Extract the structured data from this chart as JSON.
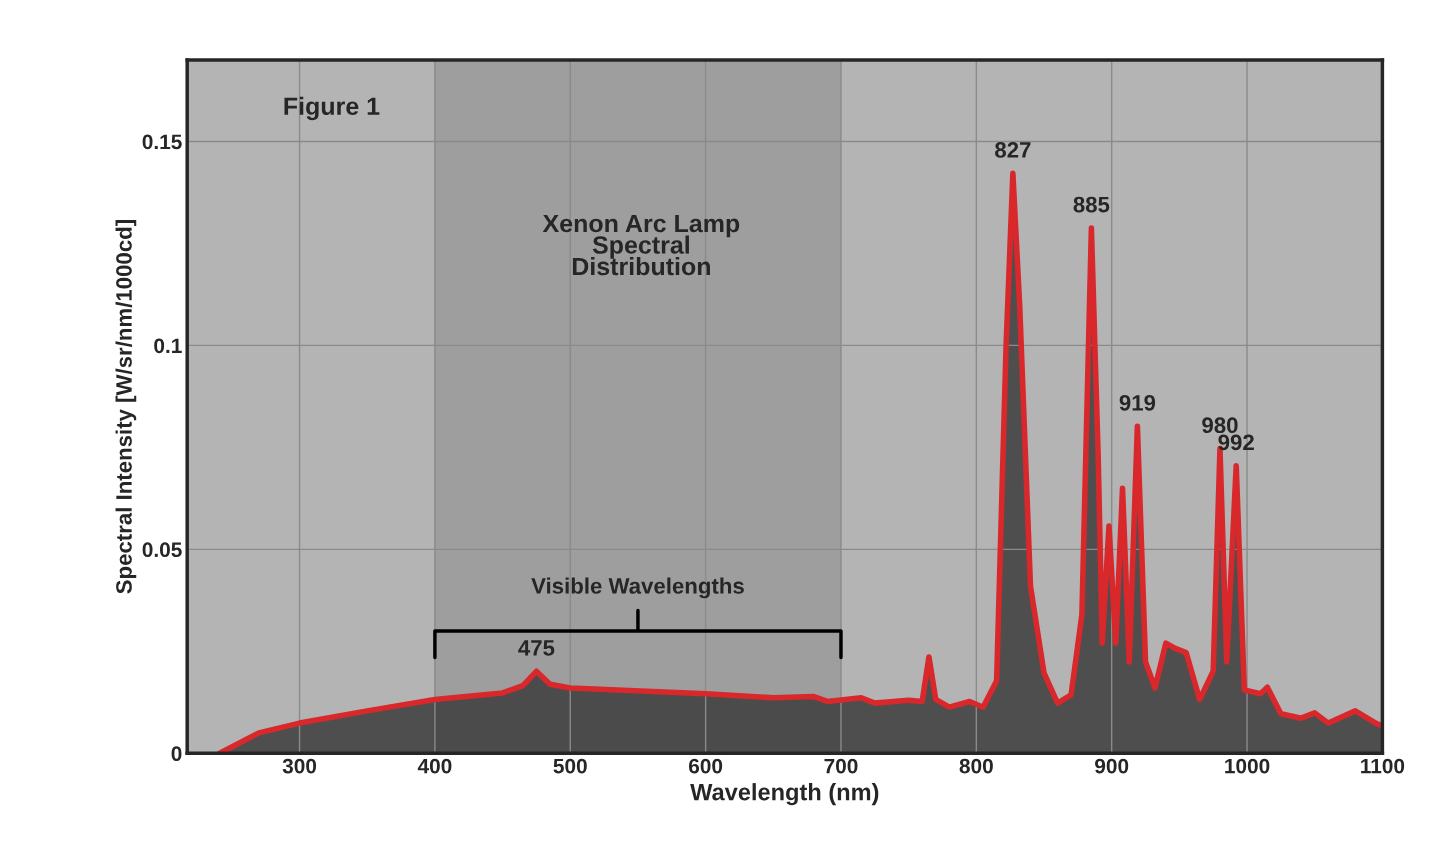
{
  "chart_data": {
    "type": "area",
    "title": "Xenon Arc Lamp\nSpectral\nDistribution",
    "xlabel": "Wavelength (nm)",
    "ylabel": "Spectral Intensity [W/sr/nm/1000cd]",
    "x": [
      241,
      270,
      300,
      350,
      400,
      450,
      465,
      475,
      485,
      500,
      600,
      650,
      680,
      690,
      715,
      725,
      750,
      760,
      765,
      770,
      780,
      795,
      805,
      815,
      822,
      827,
      832,
      840,
      850,
      860,
      870,
      878,
      885,
      890,
      893,
      898,
      903,
      908,
      913,
      919,
      925,
      932,
      940,
      947,
      955,
      965,
      975,
      980,
      985,
      992,
      998,
      1010,
      1015,
      1025,
      1040,
      1050,
      1060,
      1080,
      1095,
      1100
    ],
    "series": [
      {
        "color": "#d8282c",
        "values": [
          0,
          0.005,
          0.0074,
          0.0104,
          0.0132,
          0.0148,
          0.0166,
          0.0201,
          0.0169,
          0.016,
          0.0146,
          0.0136,
          0.0139,
          0.0127,
          0.0136,
          0.0123,
          0.013,
          0.0127,
          0.0236,
          0.0132,
          0.0113,
          0.0127,
          0.0113,
          0.0178,
          0.1,
          0.1422,
          0.11,
          0.041,
          0.0197,
          0.0123,
          0.0143,
          0.034,
          0.1288,
          0.073,
          0.027,
          0.0557,
          0.027,
          0.065,
          0.0224,
          0.0802,
          0.0224,
          0.016,
          0.027,
          0.0257,
          0.0247,
          0.0132,
          0.0201,
          0.0747,
          0.0224,
          0.0705,
          0.0155,
          0.0146,
          0.0162,
          0.0097,
          0.0086,
          0.0099,
          0.0074,
          0.0104,
          0.0074,
          0.0067
        ]
      }
    ],
    "xlim": [
      217,
      1100
    ],
    "ylim": [
      0,
      0.17
    ],
    "xticks": [
      300,
      400,
      500,
      600,
      700,
      800,
      900,
      1000,
      1100
    ],
    "yticks": [
      0,
      0.05,
      0.1,
      0.15
    ],
    "grid": true,
    "bands": [
      {
        "axis": "x",
        "from": 400,
        "to": 700,
        "label": "Visible Wavelengths",
        "color": "#000000"
      }
    ],
    "annotations": [
      "Figure 1",
      {
        "text": "475",
        "x": 475,
        "y": 0.0201
      },
      {
        "text": "827",
        "x": 827,
        "y": 0.1422
      },
      {
        "text": "885",
        "x": 885,
        "y": 0.1288
      },
      {
        "text": "919",
        "x": 919,
        "y": 0.0802
      },
      {
        "text": "980",
        "x": 980,
        "y": 0.0747
      },
      {
        "text": "992",
        "x": 992,
        "y": 0.0705
      }
    ]
  }
}
